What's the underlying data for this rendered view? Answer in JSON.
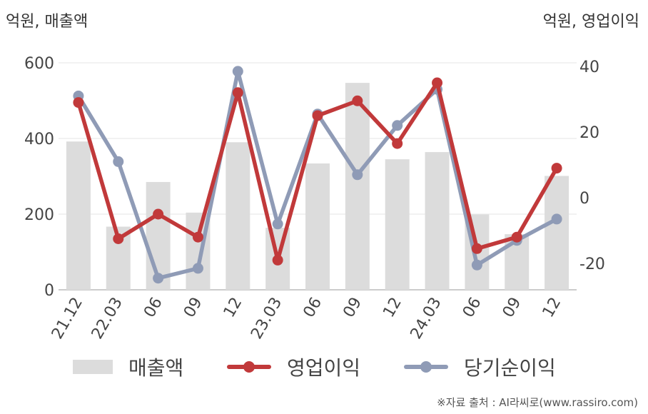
{
  "axis_units": {
    "left": "억원, 매출액",
    "right": "억원, 영업이익"
  },
  "source": "※자료 출처 : AI라씨로(www.rassiro.com)",
  "colors": {
    "bar": "#dcdcdc",
    "operating_profit": "#c1393a",
    "net_income": "#8f9bb6",
    "grid": "#e6e6e6",
    "axis": "#bbbbbb"
  },
  "chart_data": {
    "type": "bar",
    "categories": [
      "21.12",
      "22.03",
      "06",
      "09",
      "12",
      "23.03",
      "06",
      "09",
      "12",
      "24.03",
      "06",
      "09",
      "12"
    ],
    "left_axis": {
      "ylim": [
        0,
        600
      ],
      "ticks": [
        0,
        200,
        400,
        600
      ]
    },
    "right_axis": {
      "ylim": [
        -28,
        41
      ],
      "ticks": [
        -20,
        0,
        20,
        40
      ]
    },
    "series": [
      {
        "name": "매출액",
        "type": "bar",
        "axis": "left",
        "values": [
          392,
          167,
          285,
          204,
          390,
          164,
          334,
          547,
          345,
          364,
          199,
          147,
          301
        ]
      },
      {
        "name": "영업이익",
        "type": "line",
        "axis": "right",
        "values": [
          29,
          -12.5,
          -5,
          -12,
          32,
          -19,
          25,
          29.5,
          16.5,
          35,
          -15.5,
          -12,
          9
        ]
      },
      {
        "name": "당기순이익",
        "type": "line",
        "axis": "right",
        "values": [
          31,
          11,
          -24.5,
          -21.5,
          38.5,
          -8,
          25.5,
          7,
          22,
          33,
          -20.5,
          -13,
          -6.5
        ]
      }
    ],
    "legend": [
      "매출액",
      "영업이익",
      "당기순이익"
    ],
    "legend_position": "bottom",
    "grid": true
  }
}
